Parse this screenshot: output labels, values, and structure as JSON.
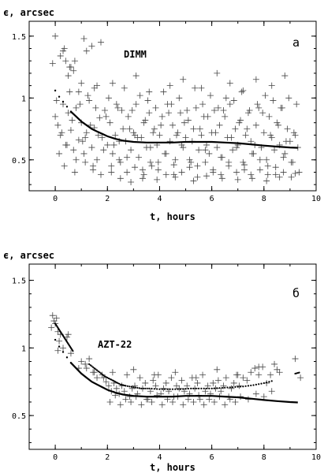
{
  "chart_data": [
    {
      "type": "scatter",
      "panel_letter": "a",
      "station_label": "DIMM",
      "xlabel": "t, hours",
      "ylabel": "ϵ, arcsec",
      "xlim": [
        -1,
        10
      ],
      "ylim": [
        0.25,
        1.62
      ],
      "xticks": [
        "0",
        "2",
        "4",
        "6",
        "8",
        "10"
      ],
      "yticks": [
        "0.5",
        "1",
        "1.5"
      ],
      "grid": false,
      "series": [
        {
          "marker": "plus",
          "x": [
            -0.1,
            0.0,
            0.2,
            0.3,
            0.35,
            0.4,
            0.5,
            0.55,
            0.6,
            0.7,
            0.75,
            0.9,
            1.0,
            1.1,
            1.2,
            1.4,
            1.5,
            1.6,
            1.75,
            0.0,
            0.1,
            0.2,
            0.3,
            0.4,
            0.5,
            0.6,
            0.7,
            0.8,
            0.9,
            1.0,
            1.1,
            1.2,
            1.3,
            1.4,
            1.5,
            1.6,
            1.7,
            1.8,
            1.9,
            2.0,
            2.1,
            2.2,
            2.3,
            2.4,
            2.5,
            2.6,
            2.7,
            2.8,
            2.9,
            3.0,
            3.1,
            3.2,
            3.3,
            3.4,
            3.5,
            3.6,
            3.7,
            3.8,
            3.9,
            4.0,
            4.1,
            4.2,
            4.3,
            4.4,
            4.5,
            4.6,
            4.7,
            4.8,
            4.9,
            5.0,
            5.1,
            5.2,
            5.3,
            5.4,
            5.5,
            5.6,
            5.7,
            5.8,
            5.9,
            6.0,
            6.1,
            6.2,
            6.3,
            6.4,
            6.5,
            6.6,
            6.7,
            6.8,
            6.9,
            7.0,
            7.1,
            7.2,
            7.3,
            7.4,
            7.5,
            7.6,
            7.7,
            7.8,
            7.9,
            8.0,
            8.1,
            8.2,
            8.3,
            8.4,
            8.5,
            8.6,
            8.7,
            8.8,
            8.9,
            9.0,
            9.1,
            9.2,
            9.3,
            0.15,
            0.45,
            0.8,
            1.15,
            1.45,
            1.85,
            2.15,
            2.45,
            2.75,
            3.05,
            3.35,
            3.65,
            3.95,
            4.25,
            4.55,
            4.85,
            5.15,
            5.45,
            5.75,
            6.05,
            6.35,
            6.65,
            6.95,
            7.25,
            7.55,
            7.85,
            8.15,
            8.45,
            8.75,
            9.05,
            0.25,
            0.65,
            1.05,
            1.35,
            1.65,
            1.95,
            2.25,
            2.55,
            2.85,
            3.15,
            3.45,
            3.75,
            4.05,
            4.35,
            4.65,
            4.95,
            5.25,
            5.55,
            5.85,
            6.15,
            6.45,
            6.75,
            7.05,
            7.35,
            7.65,
            7.95,
            8.25,
            8.55,
            8.85,
            9.15,
            0.05,
            0.55,
            0.95,
            1.25,
            1.55,
            2.05,
            2.35,
            2.65,
            2.95,
            3.25,
            3.55,
            3.85,
            4.15,
            4.45,
            4.75,
            5.05,
            5.35,
            5.65,
            5.95,
            6.25,
            6.55,
            6.85,
            7.15,
            7.45,
            7.75,
            8.05,
            8.35,
            8.65,
            8.95,
            9.25,
            0.35,
            0.75,
            1.15,
            1.45,
            1.75,
            2.15,
            2.45,
            2.75,
            3.05,
            3.35,
            3.65,
            3.95,
            4.25,
            4.55,
            4.85,
            5.15,
            5.45,
            5.75,
            6.05,
            6.35,
            6.65,
            6.95,
            7.25,
            7.55,
            7.85,
            8.15,
            8.45,
            8.75,
            9.05,
            9.35,
            2.2,
            3.1,
            3.6,
            4.4,
            4.9,
            5.6,
            6.2,
            6.7,
            7.2,
            7.7,
            8.3,
            8.8,
            2.5,
            2.9,
            3.4,
            3.9,
            4.6,
            5.3,
            5.8,
            6.4,
            7.0,
            7.5,
            8.1,
            8.6,
            9.2
          ],
          "y": [
            1.28,
            1.5,
            1.34,
            1.38,
            1.4,
            1.3,
            1.18,
            1.25,
            1.25,
            1.22,
            1.3,
            1.05,
            1.12,
            1.48,
            1.38,
            1.42,
            1.08,
            1.1,
            1.45,
            0.85,
            0.78,
            0.7,
            0.95,
            0.62,
            0.88,
            0.74,
            0.58,
            0.92,
            0.66,
            0.8,
            0.55,
            0.72,
            0.98,
            0.6,
            0.76,
            0.5,
            0.84,
            0.68,
            0.9,
            0.62,
            0.8,
            0.55,
            0.7,
            0.92,
            0.48,
            0.75,
            0.65,
            0.85,
            0.58,
            0.72,
            0.95,
            0.52,
            0.68,
            0.8,
            0.6,
            0.88,
            0.45,
            0.75,
            0.62,
            0.7,
            0.85,
            0.55,
            0.95,
            0.65,
            0.78,
            0.5,
            0.72,
            0.88,
            0.6,
            0.68,
            0.82,
            0.48,
            0.75,
            0.92,
            0.58,
            0.7,
            0.85,
            0.62,
            0.55,
            0.72,
            0.9,
            0.6,
            0.78,
            0.52,
            0.85,
            0.68,
            0.95,
            0.58,
            0.75,
            0.62,
            0.82,
            0.48,
            0.7,
            0.88,
            0.65,
            0.55,
            0.78,
            0.92,
            0.6,
            0.72,
            0.5,
            0.85,
            0.68,
            0.58,
            0.8,
            0.62,
            0.92,
            0.55,
            0.75,
            0.65,
            0.48,
            0.7,
            0.6,
            0.55,
            0.62,
            0.5,
            0.68,
            0.45,
            0.58,
            0.4,
            0.65,
            0.52,
            0.7,
            0.42,
            0.6,
            0.48,
            0.55,
            0.38,
            0.62,
            0.5,
            0.45,
            0.58,
            0.4,
            0.52,
            0.48,
            0.6,
            0.42,
            0.55,
            0.5,
            0.45,
            0.38,
            0.52,
            0.48,
            0.72,
            0.82,
            0.65,
            0.78,
            0.7,
            0.85,
            0.62,
            0.9,
            0.75,
            0.68,
            0.82,
            0.72,
            0.78,
            0.88,
            0.7,
            0.8,
            0.65,
            0.75,
            0.85,
            0.72,
            0.9,
            0.68,
            0.8,
            0.75,
            0.62,
            0.88,
            0.7,
            0.78,
            0.65,
            0.72,
            0.98,
            1.05,
            0.95,
            1.02,
            0.92,
            1.0,
            0.95,
            1.08,
            0.9,
            1.02,
            0.98,
            0.92,
            1.05,
            0.95,
            1.0,
            0.9,
            1.08,
            0.95,
            1.02,
            0.92,
            1.0,
            0.98,
            1.05,
            0.9,
            0.95,
            1.02,
            0.98,
            0.92,
            1.0,
            0.95,
            0.45,
            0.4,
            0.48,
            0.42,
            0.38,
            0.45,
            0.5,
            0.4,
            0.44,
            0.35,
            0.48,
            0.42,
            0.38,
            0.46,
            0.4,
            0.44,
            0.36,
            0.48,
            0.42,
            0.38,
            0.45,
            0.4,
            0.46,
            0.35,
            0.42,
            0.38,
            0.44,
            0.4,
            0.36,
            0.4,
            1.12,
            1.18,
            1.05,
            1.1,
            1.15,
            1.08,
            1.2,
            1.12,
            1.06,
            1.15,
            1.1,
            1.18,
            0.35,
            0.32,
            0.38,
            0.34,
            0.36,
            0.33,
            0.37,
            0.35,
            0.34,
            0.38,
            0.33,
            0.36,
            0.39
          ]
        },
        {
          "marker": "curve",
          "x": [
            0,
            0.15,
            0.3,
            0.45,
            0.6,
            0.8,
            1.0,
            1.2,
            1.4,
            1.6,
            1.8,
            2.0,
            2.3,
            2.6,
            3.0,
            3.5,
            4.0,
            4.5,
            5.0,
            5.5,
            6.0,
            6.5,
            7.0,
            7.5,
            8.0,
            8.5,
            9.0,
            9.3
          ],
          "y": [
            1.06,
            1.01,
            0.97,
            0.93,
            0.89,
            0.85,
            0.81,
            0.78,
            0.75,
            0.73,
            0.71,
            0.69,
            0.67,
            0.655,
            0.645,
            0.64,
            0.64,
            0.64,
            0.645,
            0.645,
            0.645,
            0.64,
            0.635,
            0.625,
            0.615,
            0.607,
            0.6,
            0.597
          ]
        }
      ]
    },
    {
      "type": "scatter",
      "panel_letter": "б",
      "station_label": "AZT-22",
      "xlabel": "t, hours",
      "ylabel": "ϵ, arcsec",
      "xlim": [
        -1,
        10
      ],
      "ylim": [
        0.25,
        1.62
      ],
      "xticks": [
        "0",
        "2",
        "4",
        "6",
        "8",
        "10"
      ],
      "yticks": [
        "0.5",
        "1",
        "1.5"
      ],
      "grid": false,
      "series": [
        {
          "marker": "plus",
          "x": [
            -0.15,
            -0.1,
            -0.05,
            0.0,
            0.05,
            0.1,
            0.15,
            0.2,
            0.1,
            0.3,
            0.45,
            0.5,
            0.6,
            0.9,
            1.0,
            1.15,
            1.3,
            1.45,
            1.6,
            1.8,
            1.95,
            2.05,
            2.15,
            2.25,
            2.35,
            2.45,
            2.55,
            2.65,
            2.75,
            2.85,
            2.95,
            3.05,
            3.15,
            3.25,
            3.35,
            3.45,
            3.55,
            3.65,
            3.75,
            3.85,
            3.95,
            4.05,
            4.15,
            4.25,
            4.35,
            4.45,
            4.55,
            4.65,
            4.75,
            4.85,
            4.95,
            5.05,
            5.15,
            5.25,
            5.35,
            5.45,
            5.55,
            5.65,
            5.75,
            5.85,
            5.95,
            6.05,
            6.15,
            6.25,
            6.35,
            6.45,
            6.55,
            6.65,
            6.75,
            6.85,
            6.95,
            7.05,
            7.2,
            7.35,
            7.5,
            7.65,
            7.8,
            7.95,
            8.1,
            8.25,
            8.4,
            8.6,
            9.2,
            9.4,
            2.1,
            2.3,
            2.5,
            2.7,
            2.9,
            3.1,
            3.3,
            3.5,
            3.7,
            3.9,
            4.1,
            4.3,
            4.5,
            4.7,
            4.9,
            5.1,
            5.3,
            5.5,
            5.7,
            5.9,
            6.1,
            6.3,
            6.5,
            6.7,
            6.9,
            7.1,
            7.4,
            7.7,
            8.0,
            8.3,
            1.2,
            1.5,
            1.85,
            2.2,
            3.0,
            3.8,
            4.6,
            5.4,
            6.2,
            7.0,
            7.8,
            8.5
          ],
          "y": [
            1.15,
            1.24,
            1.2,
            1.18,
            1.22,
            1.12,
            1.05,
            1.1,
            0.98,
            1.0,
            1.08,
            1.1,
            0.96,
            0.85,
            0.9,
            0.88,
            0.92,
            0.82,
            0.78,
            0.8,
            0.75,
            0.72,
            0.68,
            0.74,
            0.7,
            0.66,
            0.72,
            0.68,
            0.8,
            0.64,
            0.7,
            0.72,
            0.66,
            0.78,
            0.7,
            0.74,
            0.62,
            0.68,
            0.76,
            0.72,
            0.8,
            0.66,
            0.7,
            0.74,
            0.68,
            0.78,
            0.64,
            0.72,
            0.7,
            0.76,
            0.68,
            0.72,
            0.66,
            0.78,
            0.7,
            0.74,
            0.62,
            0.8,
            0.68,
            0.72,
            0.66,
            0.74,
            0.7,
            0.76,
            0.68,
            0.72,
            0.78,
            0.64,
            0.7,
            0.74,
            0.8,
            0.72,
            0.78,
            0.76,
            0.82,
            0.85,
            0.8,
            0.86,
            0.74,
            0.8,
            0.88,
            0.82,
            0.92,
            0.78,
            0.6,
            0.65,
            0.58,
            0.62,
            0.6,
            0.64,
            0.58,
            0.62,
            0.6,
            0.65,
            0.58,
            0.62,
            0.6,
            0.64,
            0.58,
            0.62,
            0.6,
            0.65,
            0.58,
            0.62,
            0.6,
            0.64,
            0.58,
            0.62,
            0.6,
            0.64,
            0.62,
            0.66,
            0.64,
            0.68,
            0.85,
            0.82,
            0.78,
            0.82,
            0.84,
            0.8,
            0.82,
            0.78,
            0.84,
            0.8,
            0.86,
            0.84
          ]
        },
        {
          "marker": "dots",
          "x": [
            0.0,
            0.1,
            0.2,
            0.3,
            0.4,
            0.5,
            0.6,
            0.7,
            1.3,
            1.5,
            1.7,
            1.9,
            2.1,
            2.3,
            2.5,
            2.7,
            3.0,
            3.3,
            3.6,
            4.0,
            4.4,
            4.8,
            5.2,
            5.6,
            6.0,
            6.4,
            6.8,
            7.2,
            7.6,
            8.0,
            8.4,
            9.2,
            9.4
          ],
          "y": [
            1.18,
            1.15,
            1.12,
            1.09,
            1.06,
            1.03,
            1.0,
            0.97,
            0.88,
            0.85,
            0.82,
            0.79,
            0.77,
            0.75,
            0.73,
            0.72,
            0.71,
            0.7,
            0.7,
            0.695,
            0.695,
            0.695,
            0.7,
            0.7,
            0.7,
            0.705,
            0.71,
            0.715,
            0.725,
            0.74,
            0.76,
            0.81,
            0.82
          ]
        },
        {
          "marker": "curve",
          "x": [
            0,
            0.15,
            0.3,
            0.45,
            0.6,
            0.8,
            1.0,
            1.2,
            1.4,
            1.6,
            1.8,
            2.0,
            2.3,
            2.6,
            3.0,
            3.5,
            4.0,
            4.5,
            5.0,
            5.5,
            6.0,
            6.5,
            7.0,
            7.5,
            8.0,
            8.5,
            9.0,
            9.3
          ],
          "y": [
            1.06,
            1.01,
            0.97,
            0.93,
            0.89,
            0.85,
            0.81,
            0.78,
            0.75,
            0.73,
            0.71,
            0.69,
            0.67,
            0.655,
            0.645,
            0.64,
            0.64,
            0.64,
            0.645,
            0.645,
            0.645,
            0.64,
            0.635,
            0.625,
            0.615,
            0.607,
            0.6,
            0.597
          ]
        }
      ]
    }
  ]
}
